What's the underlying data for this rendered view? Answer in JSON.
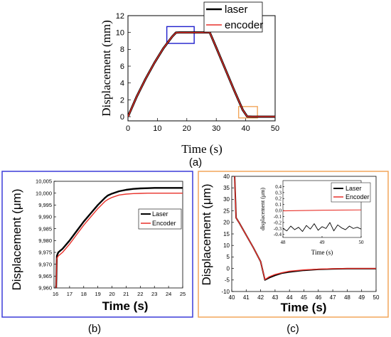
{
  "colors": {
    "laser": "#000000",
    "encoder": "#e8312a",
    "panel_b_frame": "#3b3bd9",
    "panel_c_frame": "#f2a65a",
    "zoom_box_blue": "#1f1fcc",
    "zoom_box_orange": "#f2a65a"
  },
  "chart_data": [
    {
      "type": "line",
      "panel_label": "(a)",
      "xlabel": "Time (s)",
      "ylabel": "Displacement (mm)",
      "xlim": [
        0,
        50
      ],
      "ylim": [
        -0.5,
        12
      ],
      "xticks": [
        0,
        10,
        20,
        30,
        40,
        50
      ],
      "xtick_labels": [
        "0",
        "10",
        "20",
        "30",
        "40",
        "50"
      ],
      "yticks": [
        0,
        2,
        4,
        6,
        8,
        10,
        12
      ],
      "ytick_labels": [
        "0",
        "2",
        "4",
        "6",
        "8",
        "10",
        "12"
      ],
      "legend_position": "top-right",
      "series": [
        {
          "name": "laser",
          "x": [
            0,
            3,
            6,
            9,
            12,
            15,
            16.3,
            17.5,
            20,
            25,
            27.8,
            30,
            33,
            36,
            39,
            40.5,
            42.3,
            45,
            50
          ],
          "y": [
            0,
            2.4,
            4.5,
            6.4,
            8.1,
            9.5,
            9.98,
            10.0,
            10.0,
            10.0,
            10.0,
            8.2,
            5.7,
            3.2,
            0.8,
            0.02,
            0,
            0,
            0
          ]
        },
        {
          "name": "encoder",
          "x": [
            0,
            3,
            6,
            9,
            12,
            15,
            16.3,
            17.5,
            20,
            25,
            27.8,
            30,
            33,
            36,
            39,
            40.5,
            42.3,
            45,
            50
          ],
          "y": [
            0,
            2.4,
            4.5,
            6.4,
            8.1,
            9.5,
            9.98,
            10.0,
            10.0,
            10.0,
            10.0,
            8.2,
            5.7,
            3.2,
            0.8,
            0.02,
            0,
            0,
            0
          ]
        }
      ],
      "zoom_boxes": [
        {
          "color": "blue",
          "x": [
            13.2,
            22.5
          ],
          "y": [
            8.7,
            10.7
          ]
        },
        {
          "color": "orange",
          "x": [
            37.6,
            44
          ],
          "y": [
            -0.15,
            1.2
          ]
        }
      ]
    },
    {
      "type": "line",
      "panel_label": "(b)",
      "xlabel": "Time (s)",
      "ylabel": "Displacement (μm)",
      "xlim": [
        15.9,
        25
      ],
      "ylim": [
        9960,
        10005
      ],
      "xticks": [
        16,
        17,
        18,
        19,
        20,
        21,
        22,
        23,
        24,
        25
      ],
      "xtick_labels": [
        "16",
        "17",
        "18",
        "19",
        "20",
        "21",
        "22",
        "23",
        "24",
        "25"
      ],
      "yticks": [
        9960,
        9965,
        9970,
        9975,
        9980,
        9985,
        9990,
        9995,
        10000,
        10005
      ],
      "ytick_labels": [
        "9,960",
        "9,965",
        "9,970",
        "9,975",
        "9,980",
        "9,985",
        "9,990",
        "9,995",
        "10,000",
        "10,005"
      ],
      "legend_position": "right",
      "series": [
        {
          "name": "Laser",
          "x": [
            16.05,
            16.1,
            16.2,
            16.3,
            16.5,
            17,
            17.5,
            18,
            18.5,
            19,
            19.5,
            19.7,
            20,
            20.5,
            21,
            21.5,
            22,
            22.5,
            23,
            23.5,
            24,
            25
          ],
          "y": [
            9960,
            9973.5,
            9975,
            9975.5,
            9976.5,
            9980,
            9984,
            9988,
            9991.5,
            9995,
            9998,
            9999,
            9999.8,
            10000.8,
            10001.4,
            10001.8,
            10002,
            10002.1,
            10002.2,
            10002.2,
            10002.2,
            10002.2
          ]
        },
        {
          "name": "Encoder",
          "x": [
            16.05,
            16.1,
            16.2,
            16.3,
            16.5,
            17,
            17.5,
            18,
            18.5,
            19,
            19.5,
            19.7,
            20,
            20.5,
            21,
            21.5,
            22,
            22.5,
            23,
            23.5,
            24,
            25
          ],
          "y": [
            9960,
            9972.5,
            9973.5,
            9974,
            9975,
            9978.5,
            9982.5,
            9986.5,
            9990,
            9993.5,
            9996.5,
            9997.3,
            9998.2,
            9999.2,
            9999.6,
            9999.8,
            9999.9,
            10000,
            10000,
            10000,
            10000,
            10000
          ]
        }
      ]
    },
    {
      "type": "line",
      "panel_label": "(c)",
      "xlabel": "Time (s)",
      "ylabel": "Displacement (μm)",
      "xlim": [
        40,
        50
      ],
      "ylim": [
        -10,
        40
      ],
      "xticks": [
        40,
        41,
        42,
        43,
        44,
        45,
        46,
        47,
        48,
        49,
        50
      ],
      "xtick_labels": [
        "40",
        "41",
        "42",
        "43",
        "44",
        "45",
        "46",
        "47",
        "48",
        "49",
        "50"
      ],
      "yticks": [
        -10,
        -5,
        0,
        5,
        10,
        15,
        20,
        25,
        30,
        35,
        40
      ],
      "ytick_labels": [
        "-10",
        "-5",
        "0",
        "5",
        "10",
        "15",
        "20",
        "25",
        "30",
        "35",
        "40"
      ],
      "legend_position": "top-right",
      "series": [
        {
          "name": "Laser",
          "x": [
            40.2,
            40.3,
            40.5,
            41,
            41.5,
            42,
            42.3,
            42.6,
            43,
            43.5,
            44,
            45,
            46,
            47,
            48,
            49,
            50
          ],
          "y": [
            40,
            22,
            20,
            14.5,
            9,
            3,
            -5,
            -4,
            -3,
            -2,
            -1.5,
            -0.8,
            -0.4,
            -0.2,
            -0.1,
            -0.1,
            -0.1
          ]
        },
        {
          "name": "Encoder",
          "x": [
            40.2,
            40.3,
            40.5,
            41,
            41.5,
            42,
            42.3,
            42.6,
            43,
            43.5,
            44,
            45,
            46,
            47,
            48,
            49,
            50
          ],
          "y": [
            40,
            22,
            20,
            14.5,
            9,
            3,
            -4.8,
            -3.6,
            -2.6,
            -1.8,
            -1.2,
            -0.6,
            -0.3,
            -0.1,
            0,
            0,
            0
          ]
        }
      ],
      "inset": {
        "xlabel": "Time (s)",
        "ylabel": "displacement (μm)",
        "xlim": [
          48,
          50
        ],
        "ylim": [
          -0.45,
          0.5
        ],
        "xticks": [
          48,
          49,
          50
        ],
        "xtick_labels": [
          "48",
          "49",
          "50"
        ],
        "yticks": [
          -0.4,
          -0.3,
          -0.2,
          -0.1,
          0.0,
          0.1,
          0.2,
          0.3,
          0.4
        ],
        "ytick_labels": [
          "-0.4",
          "-0.3",
          "-0.2",
          "-0.1",
          "0.0",
          "0.1",
          "0.2",
          "0.3",
          "0.4"
        ],
        "series": [
          {
            "name": "Laser",
            "x": [
              48.0,
              48.1,
              48.2,
              48.3,
              48.4,
              48.5,
              48.6,
              48.7,
              48.8,
              48.9,
              49.0,
              49.1,
              49.2,
              49.3,
              49.4,
              49.5,
              49.6,
              49.7,
              49.8,
              49.9,
              50.0
            ],
            "y": [
              -0.3,
              -0.34,
              -0.26,
              -0.32,
              -0.28,
              -0.35,
              -0.25,
              -0.31,
              -0.22,
              -0.33,
              -0.27,
              -0.3,
              -0.2,
              -0.34,
              -0.24,
              -0.29,
              -0.32,
              -0.26,
              -0.3,
              -0.28,
              -0.31
            ]
          },
          {
            "name": "Encoder",
            "x": [
              48,
              49,
              50
            ],
            "y": [
              -0.005,
              0.005,
              0.01
            ]
          }
        ]
      }
    }
  ]
}
